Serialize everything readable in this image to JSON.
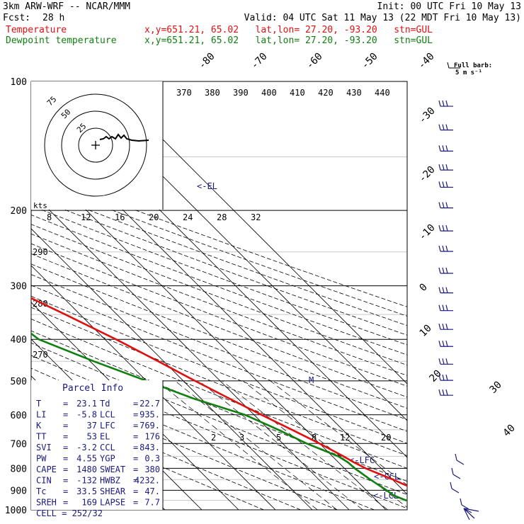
{
  "header": {
    "model": "3km ARW-WRF -- NCAR/MMM",
    "init": "Init: 00 UTC Fri 10 May 13",
    "fcst_label": "Fcst:",
    "fcst_value": "28 h",
    "valid": "Valid: 04 UTC Sat 11 May 13 (22 MDT Fri 10 May 13)"
  },
  "legend": [
    {
      "name": "Temperature",
      "color": "#e01010",
      "info": "x,y=651.21, 65.02   lat,lon= 27.20, -93.20   stn=GUL"
    },
    {
      "name": "Dewpoint temperature",
      "color": "#108010",
      "info": "x,y=651.21, 65.02   lat,lon= 27.20, -93.20   stn=GUL"
    }
  ],
  "barb_key": {
    "line1": "Full barb:",
    "line2": "5 m s⁻¹"
  },
  "parcel_info": {
    "title": "Parcel Info",
    "rows": [
      [
        {
          "k": "T",
          "v": "23.1"
        },
        {
          "k": "Td",
          "v": "22.7"
        }
      ],
      [
        {
          "k": "LI",
          "v": "-5.8"
        },
        {
          "k": "LCL",
          "v": "935."
        }
      ],
      [
        {
          "k": "K",
          "v": "37"
        },
        {
          "k": "LFC",
          "v": "769."
        }
      ],
      [
        {
          "k": "TT",
          "v": "53"
        },
        {
          "k": "EL",
          "v": "176"
        }
      ],
      [
        {
          "k": "SVI",
          "v": "-3.2"
        },
        {
          "k": "CCL",
          "v": "843."
        }
      ],
      [
        {
          "k": "PW",
          "v": "4.55"
        },
        {
          "k": "YGP",
          "v": "0.3"
        }
      ],
      [
        {
          "k": "CAPE",
          "v": "1480"
        },
        {
          "k": "SWEAT",
          "v": "380"
        }
      ],
      [
        {
          "k": "CIN",
          "v": "-132"
        },
        {
          "k": "HWBZ",
          "v": "4232."
        }
      ],
      [
        {
          "k": "Tc",
          "v": "33.5"
        },
        {
          "k": "SHEAR",
          "v": "47."
        }
      ],
      [
        {
          "k": "SREH",
          "v": "169"
        },
        {
          "k": "LAPSE",
          "v": "7.7"
        }
      ]
    ],
    "cell": "CELL = 252/32"
  },
  "level_labels": {
    "el": "<-EL",
    "lfc": "<-LFC",
    "ccl": "<-CCL",
    "lcl": "<-LCL",
    "m": "M"
  },
  "hodograph": {
    "unit_label": "kts",
    "ring_labels": [
      "25",
      "50",
      "75"
    ]
  },
  "chart_data": {
    "type": "line",
    "title": "",
    "ylabel": "",
    "y_scale": "log",
    "y_ticks": [
      100,
      200,
      300,
      400,
      500,
      600,
      700,
      800,
      900,
      1000
    ],
    "y_range": [
      100,
      1000
    ],
    "isotherm_labels": [
      "-80",
      "-70",
      "-60",
      "-50",
      "-40",
      "-30",
      "-20",
      "-10",
      "0",
      "10",
      "20",
      "30",
      "40"
    ],
    "theta_labels": [
      "370",
      "380",
      "390",
      "400",
      "410",
      "420",
      "430",
      "440"
    ],
    "theta_e_labels": [
      "290",
      "280",
      "270"
    ],
    "mixing_ratio_labels_upper": [
      "8",
      "12",
      "16",
      "20",
      "24",
      "28",
      "32"
    ],
    "mixing_ratio_labels_lower": [
      "2",
      "3",
      "5",
      "8",
      "12",
      "20"
    ],
    "series": [
      {
        "name": "Temperature",
        "color": "#e01010",
        "points": [
          [
            1000,
            23.5
          ],
          [
            975,
            24.5
          ],
          [
            950,
            25.5
          ],
          [
            925,
            25.7
          ],
          [
            900,
            24.0
          ],
          [
            875,
            22.0
          ],
          [
            850,
            20.2
          ],
          [
            825,
            18.0
          ],
          [
            800,
            15.8
          ],
          [
            775,
            14.2
          ],
          [
            750,
            13.0
          ],
          [
            700,
            10.0
          ],
          [
            650,
            6.2
          ],
          [
            600,
            2.0
          ],
          [
            550,
            -2.3
          ],
          [
            500,
            -6.8
          ],
          [
            450,
            -11.5
          ],
          [
            400,
            -17.0
          ],
          [
            350,
            -24.0
          ],
          [
            300,
            -32.5
          ],
          [
            250,
            -43.0
          ],
          [
            200,
            -55.0
          ],
          [
            175,
            -62.0
          ],
          [
            150,
            -70.0
          ],
          [
            125,
            -73.5
          ],
          [
            100,
            -73.0
          ]
        ]
      },
      {
        "name": "Dewpoint temperature",
        "color": "#108010",
        "points": [
          [
            1000,
            22.7
          ],
          [
            975,
            21.0
          ],
          [
            950,
            18.0
          ],
          [
            925,
            16.0
          ],
          [
            900,
            15.5
          ],
          [
            850,
            14.0
          ],
          [
            800,
            12.8
          ],
          [
            775,
            12.6
          ],
          [
            750,
            11.6
          ],
          [
            700,
            6.5
          ],
          [
            650,
            2.5
          ],
          [
            600,
            -2.5
          ],
          [
            550,
            -12.0
          ],
          [
            500,
            -20.0
          ],
          [
            450,
            -29.0
          ],
          [
            400,
            -38.0
          ],
          [
            350,
            -40.0
          ],
          [
            300,
            -48.0
          ],
          [
            250,
            -59.0
          ],
          [
            200,
            -68.0
          ],
          [
            150,
            -77.0
          ],
          [
            125,
            -82.0
          ],
          [
            100,
            -92.0
          ]
        ]
      }
    ],
    "wind_barb_levels": [
      110,
      125,
      140,
      155,
      170,
      190,
      215,
      240,
      270,
      300,
      330,
      365,
      400,
      440,
      480,
      520
    ]
  }
}
